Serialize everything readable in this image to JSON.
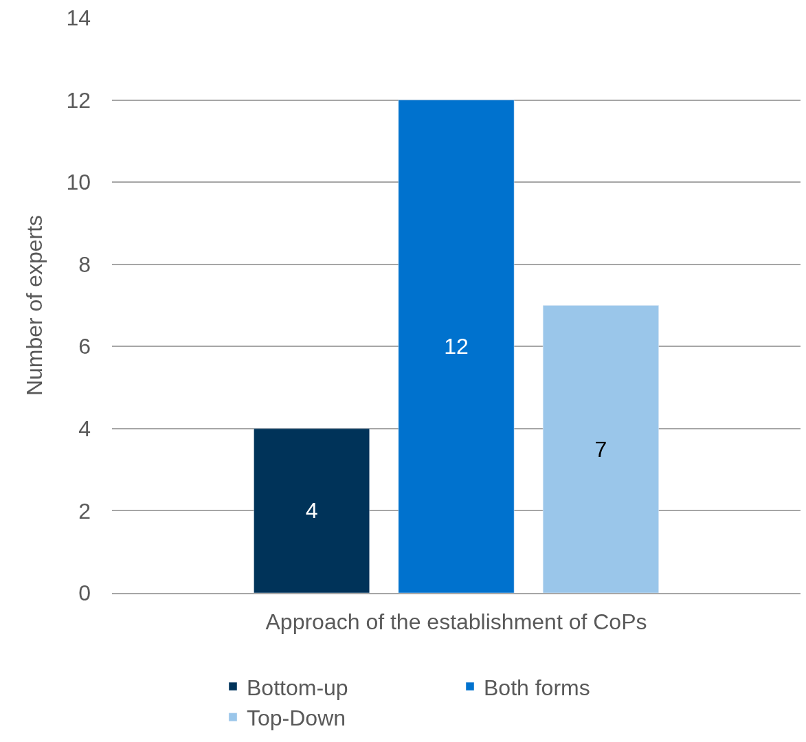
{
  "chart_data": {
    "type": "bar",
    "xlabel": "Approach of the establishment of CoPs",
    "ylabel": "Number of experts",
    "categories": [
      null
    ],
    "series": [
      {
        "name": "Bottom-up",
        "color": "#003359",
        "values": [
          4
        ]
      },
      {
        "name": "Both forms",
        "color": "#0072ce",
        "values": [
          12
        ]
      },
      {
        "name": "Top-Down",
        "color": "#9ac6ea",
        "values": [
          7
        ]
      }
    ],
    "ylim": [
      0,
      14
    ],
    "yticks": [
      0,
      2,
      4,
      6,
      8,
      10,
      12,
      14
    ],
    "grid": "y",
    "legend": "bottom",
    "tick_labels": "y",
    "data_labels": true
  }
}
